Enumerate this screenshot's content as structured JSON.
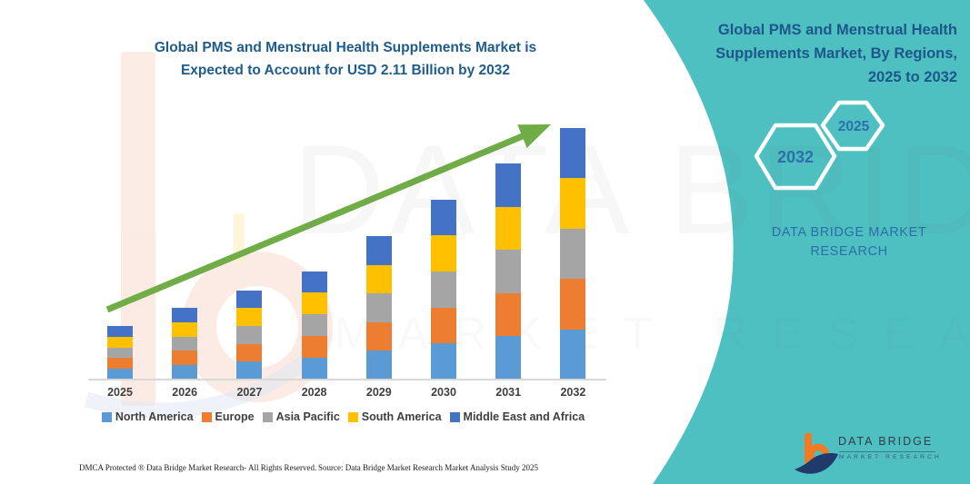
{
  "colors": {
    "teal": "#4FC0C1",
    "arrow_green": "#70AD47",
    "title_blue": "#1F5C8B",
    "panel_title_blue": "#1D568A",
    "hex_year_blue": "#2B70AB",
    "axis_gray": "#D8D8D8",
    "label_gray": "#3F3F3F",
    "logo_orange": "#F07B22",
    "logo_navy": "#203A6B"
  },
  "chart": {
    "title": "Global PMS and Menstrual Health Supplements Market is\nExpected to Account for USD 2.11 Billion by 2032"
  },
  "chart_data": {
    "type": "bar",
    "stacked": true,
    "title": "Global PMS and Menstrual Health Supplements Market is Expected to Account for USD 2.11 Billion by 2032",
    "key_fact": "USD 2.11 Billion by 2032",
    "unit": "USD Billion",
    "categories": [
      "2025",
      "2026",
      "2027",
      "2028",
      "2029",
      "2030",
      "2031",
      "2032"
    ],
    "series": [
      {
        "name": "North America",
        "color": "#5B9BD5",
        "values": [
          0.09,
          0.12,
          0.15,
          0.182,
          0.24,
          0.302,
          0.362,
          0.422
        ]
      },
      {
        "name": "Europe",
        "color": "#ED7D31",
        "values": [
          0.09,
          0.12,
          0.15,
          0.182,
          0.24,
          0.302,
          0.362,
          0.422
        ]
      },
      {
        "name": "Asia Pacific",
        "color": "#A5A5A5",
        "values": [
          0.09,
          0.12,
          0.15,
          0.182,
          0.24,
          0.302,
          0.362,
          0.422
        ]
      },
      {
        "name": "South America",
        "color": "#FFC000",
        "values": [
          0.09,
          0.12,
          0.15,
          0.182,
          0.24,
          0.302,
          0.362,
          0.422
        ]
      },
      {
        "name": "Middle East and Africa",
        "color": "#4472C4",
        "values": [
          0.09,
          0.12,
          0.15,
          0.182,
          0.24,
          0.302,
          0.362,
          0.422
        ]
      }
    ],
    "totals": [
      0.45,
      0.6,
      0.75,
      0.91,
      1.2,
      1.51,
      1.81,
      2.11
    ],
    "ylim": [
      0,
      2.2
    ],
    "y_axis_visible": false,
    "grid": false,
    "legend_position": "bottom",
    "trend_arrow": "upward"
  },
  "panel": {
    "title": "Global PMS and Menstrual Health\nSupplements Market, By Regions,\n2025 to 2032",
    "hex_large_year": "2032",
    "hex_small_year": "2025",
    "brand_text": "DATA BRIDGE MARKET\nRESEARCH"
  },
  "watermark": {
    "line1": "DATA BRIDGE",
    "line2": "MARKET RESEARCH"
  },
  "logo": {
    "title": "DATA BRIDGE",
    "subtitle": "MARKET RESEARCH"
  },
  "footer": {
    "dmca": "DMCA Protected ® Data Bridge Market Research-  All Rights Reserved.",
    "source": "Source: Data Bridge Market Research  Market Analysis Study 2025"
  }
}
